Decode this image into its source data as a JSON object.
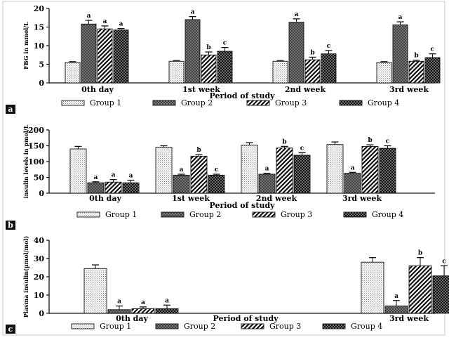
{
  "chart_data": [
    {
      "type": "bar",
      "panel_label": "a",
      "ylabel": "FBG in mmol/L",
      "xlabel": "Period of study",
      "ylim": [
        0,
        20
      ],
      "yticks": [
        0,
        5,
        10,
        15,
        20
      ],
      "categories": [
        "0th day",
        "1st week",
        "2nd week",
        "3rd week"
      ],
      "series": [
        {
          "name": "Group 1",
          "values": [
            5.5,
            5.8,
            5.8,
            5.5
          ],
          "errors": [
            0.2,
            0.2,
            0.2,
            0.2
          ],
          "letters": [
            "",
            "",
            "",
            ""
          ]
        },
        {
          "name": "Group 2",
          "values": [
            15.8,
            17.0,
            16.3,
            15.6
          ],
          "errors": [
            1.0,
            0.8,
            0.9,
            0.8
          ],
          "letters": [
            "a",
            "a",
            "a",
            "a"
          ]
        },
        {
          "name": "Group 3",
          "values": [
            14.5,
            7.5,
            6.2,
            5.8
          ],
          "errors": [
            0.8,
            0.8,
            0.7,
            0.3
          ],
          "letters": [
            "a",
            "b",
            "b",
            "b"
          ]
        },
        {
          "name": "Group 4",
          "values": [
            14.2,
            8.5,
            7.8,
            6.8
          ],
          "errors": [
            0.4,
            1.0,
            0.9,
            1.0
          ],
          "letters": [
            "a",
            "c",
            "c",
            "c"
          ]
        }
      ],
      "legend_placement": "bottom"
    },
    {
      "type": "bar",
      "panel_label": "b",
      "ylabel": "insulin levels in pmol/L",
      "xlabel": "Period of study",
      "ylim": [
        0,
        200
      ],
      "yticks": [
        0,
        50,
        100,
        150,
        200
      ],
      "categories": [
        "0th day",
        "1st week",
        "2nd week",
        "3rd week"
      ],
      "series": [
        {
          "name": "Group 1",
          "values": [
            140,
            145,
            152,
            154
          ],
          "errors": [
            8,
            5,
            8,
            8
          ],
          "letters": [
            "",
            "",
            "",
            ""
          ]
        },
        {
          "name": "Group 2",
          "values": [
            33,
            57,
            60,
            63
          ],
          "errors": [
            3,
            3,
            3,
            3
          ],
          "letters": [
            "a",
            "a",
            "a",
            "a"
          ]
        },
        {
          "name": "Group 3",
          "values": [
            35,
            117,
            143,
            148
          ],
          "errors": [
            8,
            5,
            5,
            5
          ],
          "letters": [
            "a",
            "b",
            "b",
            "b"
          ]
        },
        {
          "name": "Group 4",
          "values": [
            33,
            57,
            120,
            142
          ],
          "errors": [
            8,
            3,
            8,
            8
          ],
          "letters": [
            "a",
            "c",
            "c",
            "c"
          ]
        }
      ],
      "legend_placement": "bottom"
    },
    {
      "type": "bar",
      "panel_label": "c",
      "ylabel": "Plasma insulin(µmol/mol)",
      "xlabel": "Period of study",
      "ylim": [
        0,
        40
      ],
      "yticks": [
        0,
        10,
        20,
        30,
        40
      ],
      "categories": [
        "0th day",
        "3rd week"
      ],
      "series": [
        {
          "name": "Group 1",
          "values": [
            24.5,
            28.0
          ],
          "errors": [
            2.0,
            2.5
          ],
          "letters": [
            "",
            ""
          ]
        },
        {
          "name": "Group 2",
          "values": [
            2.0,
            4.0
          ],
          "errors": [
            2.0,
            3.0
          ],
          "letters": [
            "a",
            "a"
          ]
        },
        {
          "name": "Group 3",
          "values": [
            2.5,
            26.0
          ],
          "errors": [
            1.0,
            4.5
          ],
          "letters": [
            "a",
            "b"
          ]
        },
        {
          "name": "Group 4",
          "values": [
            2.5,
            20.5
          ],
          "errors": [
            2.0,
            5.5
          ],
          "letters": [
            "a",
            "c"
          ]
        }
      ],
      "legend_placement": "bottom"
    }
  ]
}
